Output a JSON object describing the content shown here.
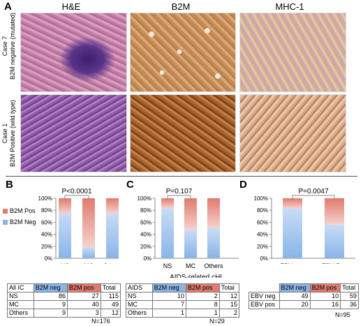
{
  "panelA": {
    "label": "A",
    "columns": [
      "H&E",
      "B2M",
      "MHC-1"
    ],
    "rows": [
      {
        "line1": "Case 7",
        "line2": "B2M negative (mutated)"
      },
      {
        "line1": "Case 1",
        "line2": "B2M Positive (wild type)"
      }
    ]
  },
  "colors": {
    "neg": "#8ab4e8",
    "pos": "#e07b6e",
    "he": "#7a4a9a",
    "ihc": "#b07a4a"
  },
  "legend": {
    "pos": "B2M Pos",
    "neg": "B2M Neg"
  },
  "chart_data": [
    {
      "type": "bar",
      "panel": "B",
      "title": "",
      "pvalue": "P<0.0001",
      "categories": [
        "NS",
        "MC",
        "Others"
      ],
      "series": [
        {
          "name": "B2M Neg",
          "values": [
            75,
            18,
            75
          ]
        },
        {
          "name": "B2M Pos",
          "values": [
            25,
            82,
            25
          ]
        }
      ],
      "yticks": [
        "0%",
        "20%",
        "40%",
        "60%",
        "80%",
        "100%"
      ],
      "ylim": [
        0,
        100
      ]
    },
    {
      "type": "bar",
      "panel": "C",
      "title": "AIDS-related cHL",
      "pvalue": "P=0.107",
      "categories": [
        "NS",
        "MC",
        "Others"
      ],
      "series": [
        {
          "name": "B2M Neg",
          "values": [
            83,
            47,
            50
          ]
        },
        {
          "name": "B2M Pos",
          "values": [
            17,
            53,
            50
          ]
        }
      ],
      "yticks": [
        "0%",
        "20%",
        "40%",
        "60%",
        "80%",
        "100%"
      ],
      "ylim": [
        0,
        100
      ]
    },
    {
      "type": "bar",
      "panel": "D",
      "title": "",
      "pvalue": "P=0.0047",
      "categories": [
        "EBV neg",
        "EBV Pos"
      ],
      "series": [
        {
          "name": "B2M Neg",
          "values": [
            83,
            56
          ]
        },
        {
          "name": "B2M Pos",
          "values": [
            17,
            44
          ]
        }
      ],
      "yticks": [
        "0%",
        "20%",
        "40%",
        "60%",
        "80%",
        "100%"
      ],
      "ylim": [
        0,
        100
      ]
    }
  ],
  "tables": {
    "B": {
      "header": [
        "All IC",
        "B2M neg",
        "B2M pos",
        "Total"
      ],
      "rows": [
        [
          "NS",
          "86",
          "27",
          "115"
        ],
        [
          "MC",
          "9",
          "40",
          "49"
        ],
        [
          "Others",
          "9",
          "3",
          "12"
        ]
      ],
      "n": "N=176"
    },
    "C": {
      "header": [
        "AIDS",
        "B2M neg",
        "B2M pos",
        "Total"
      ],
      "rows": [
        [
          "NS",
          "10",
          "2",
          "12"
        ],
        [
          "MC",
          "7",
          "8",
          "15"
        ],
        [
          "Others",
          "1",
          "1",
          "2"
        ]
      ],
      "n": "N=29"
    },
    "D": {
      "header": [
        "",
        "B2M neg",
        "B2M pos",
        "Total"
      ],
      "rows": [
        [
          "EBV neg",
          "49",
          "10",
          "59"
        ],
        [
          "EBV pos",
          "20",
          "16",
          "36"
        ]
      ],
      "n": "N=95"
    }
  }
}
